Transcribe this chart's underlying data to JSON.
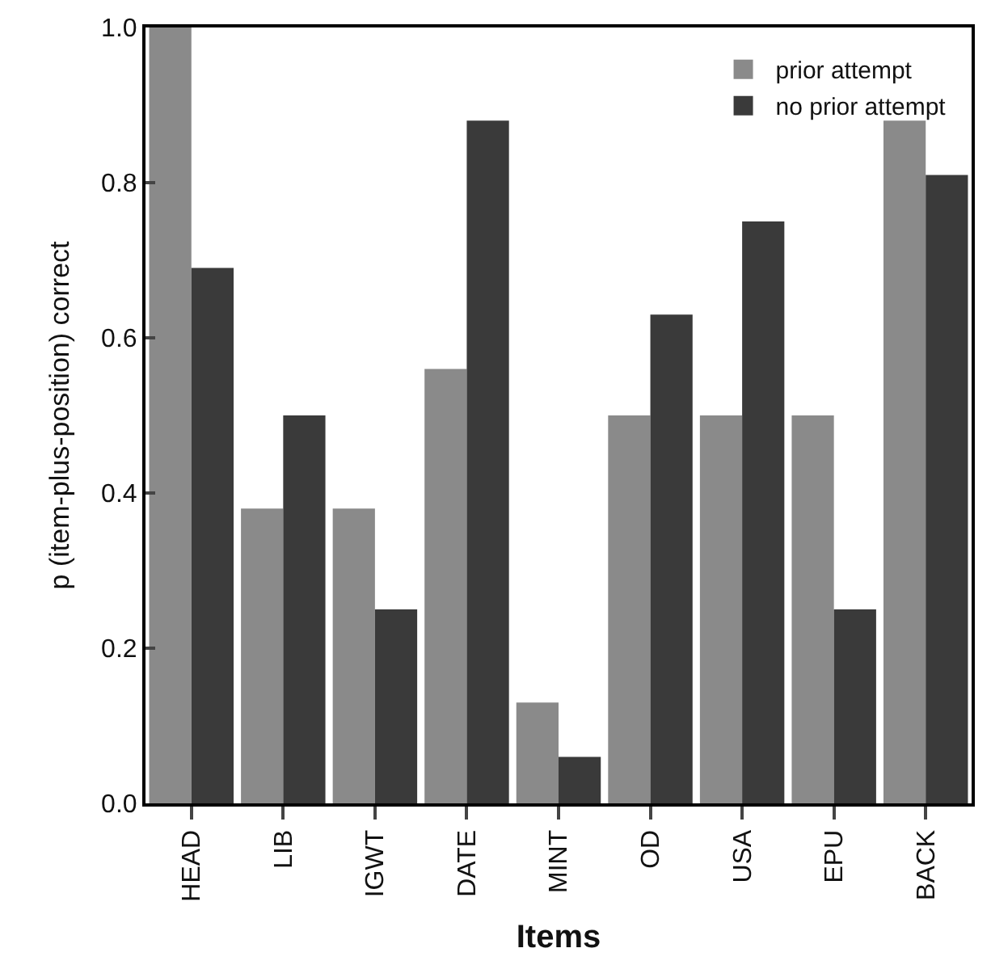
{
  "chart_data": {
    "type": "bar",
    "xlabel": "Items",
    "ylabel": "p (item-plus-position) correct",
    "categories": [
      "HEAD",
      "LIB",
      "IGWT",
      "DATE",
      "MINT",
      "OD",
      "USA",
      "EPU",
      "BACK"
    ],
    "series": [
      {
        "name": "prior attempt",
        "color": "#8a8a8a",
        "values": [
          1.0,
          0.38,
          0.38,
          0.56,
          0.13,
          0.5,
          0.5,
          0.5,
          0.88
        ]
      },
      {
        "name": "no prior attempt",
        "color": "#3a3a3a",
        "values": [
          0.69,
          0.5,
          0.25,
          0.88,
          0.06,
          0.63,
          0.75,
          0.25,
          0.81
        ]
      }
    ],
    "ylim": [
      0,
      1
    ],
    "yticks": [
      {
        "value": 0,
        "label": "0.0"
      },
      {
        "value": 0.2,
        "label": "0.2"
      },
      {
        "value": 0.4,
        "label": "0.4"
      },
      {
        "value": 0.6,
        "label": "0.6"
      },
      {
        "value": 0.8,
        "label": "0.8"
      },
      {
        "value": 1,
        "label": "1.0"
      }
    ],
    "legend": "top right"
  }
}
